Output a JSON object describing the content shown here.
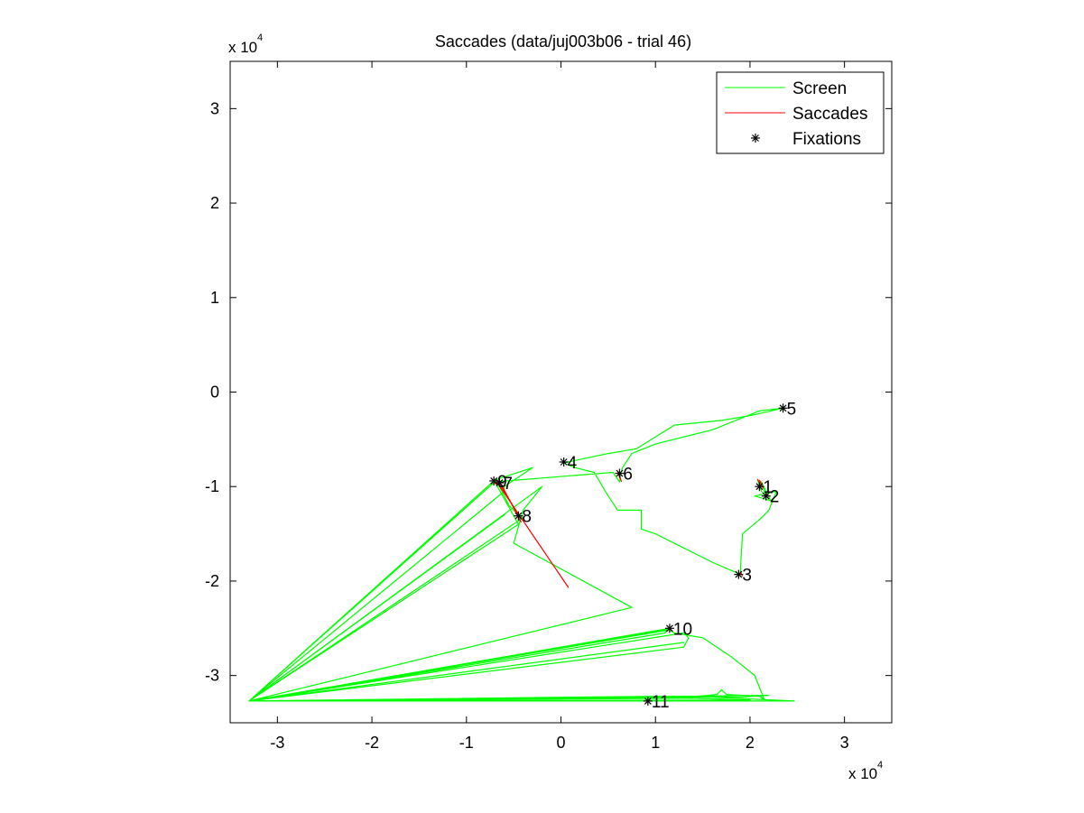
{
  "chart_data": {
    "type": "line",
    "title": "Saccades (data/juj003b06 - trial 46)",
    "x_multiplier": "x 10",
    "x_exponent": "4",
    "y_multiplier": "x 10",
    "y_exponent": "4",
    "xlim": [
      -3.5,
      3.5
    ],
    "ylim": [
      -3.5,
      3.5
    ],
    "x_ticks": [
      -3,
      -2,
      -1,
      0,
      1,
      2,
      3
    ],
    "x_tick_labels": [
      "-3",
      "-2",
      "-1",
      "0",
      "1",
      "2",
      "3"
    ],
    "y_ticks": [
      -3,
      -2,
      -1,
      0,
      1,
      2,
      3
    ],
    "y_tick_labels": [
      "-3",
      "-2",
      "-1",
      "0",
      "1",
      "2",
      "3"
    ],
    "grid": false,
    "legend_position": "top-right",
    "colors": {
      "screen": "#00ff00",
      "saccades": "#ff0000",
      "fixations": "#000000"
    },
    "series": [
      {
        "name": "Screen",
        "points": [
          [
            2.08,
            -0.93
          ],
          [
            2.12,
            -1.05
          ],
          [
            2.17,
            -1.1
          ],
          [
            2.12,
            -0.95
          ],
          [
            2.22,
            -1.15
          ],
          [
            2.05,
            -1.1
          ],
          [
            2.28,
            -1.05
          ],
          [
            2.2,
            -1.25
          ],
          [
            2.1,
            -1.35
          ],
          [
            1.92,
            -1.5
          ],
          [
            1.9,
            -1.85
          ],
          [
            1.9,
            -1.93
          ],
          [
            1.6,
            -1.8
          ],
          [
            1.3,
            -1.65
          ],
          [
            1.0,
            -1.5
          ],
          [
            0.85,
            -1.45
          ],
          [
            0.85,
            -1.25
          ],
          [
            0.6,
            -1.25
          ],
          [
            0.5,
            -1.1
          ],
          [
            0.35,
            -0.85
          ],
          [
            0.15,
            -0.8
          ],
          [
            0.03,
            -0.75
          ],
          [
            0.5,
            -0.65
          ],
          [
            0.8,
            -0.6
          ],
          [
            1.2,
            -0.35
          ],
          [
            1.7,
            -0.3
          ],
          [
            2.0,
            -0.25
          ],
          [
            2.35,
            -0.17
          ],
          [
            2.1,
            -0.2
          ],
          [
            1.6,
            -0.4
          ],
          [
            1.0,
            -0.55
          ],
          [
            0.75,
            -0.65
          ],
          [
            0.65,
            -0.8
          ],
          [
            0.63,
            -0.88
          ],
          [
            0.62,
            -0.95
          ],
          [
            0.55,
            -0.85
          ],
          [
            -0.7,
            -0.95
          ],
          [
            -0.65,
            -1.0
          ],
          [
            -0.6,
            -1.1
          ],
          [
            -0.55,
            -1.2
          ],
          [
            -0.45,
            -1.3
          ],
          [
            -0.4,
            -1.33
          ],
          [
            -3.3,
            -3.27
          ],
          [
            -0.7,
            -0.95
          ],
          [
            -0.45,
            -1.4
          ],
          [
            -3.3,
            -3.27
          ],
          [
            -0.72,
            -1.15
          ],
          [
            -3.3,
            -3.27
          ],
          [
            -0.7,
            -0.93
          ],
          [
            -0.3,
            -0.8
          ],
          [
            -0.6,
            -1.0
          ],
          [
            -0.6,
            -1.05
          ],
          [
            -3.3,
            -3.27
          ],
          [
            -0.6,
            -1.3
          ],
          [
            -3.3,
            -3.27
          ],
          [
            0.75,
            -2.28
          ],
          [
            -0.5,
            -1.6
          ],
          [
            -0.4,
            -1.25
          ],
          [
            -0.2,
            -1.0
          ],
          [
            -3.3,
            -3.27
          ],
          [
            -0.7,
            -0.95
          ],
          [
            -3.3,
            -3.27
          ],
          [
            1.15,
            -2.5
          ],
          [
            1.1,
            -2.55
          ],
          [
            -3.3,
            -3.27
          ],
          [
            1.13,
            -2.52
          ],
          [
            -3.3,
            -3.27
          ],
          [
            1.12,
            -2.52
          ],
          [
            -3.3,
            -3.27
          ],
          [
            1.3,
            -2.65
          ],
          [
            -3.3,
            -3.27
          ],
          [
            1.3,
            -2.55
          ],
          [
            1.35,
            -2.6
          ],
          [
            1.3,
            -2.7
          ],
          [
            -3.3,
            -3.27
          ],
          [
            1.13,
            -2.51
          ],
          [
            1.2,
            -2.55
          ],
          [
            1.5,
            -2.6
          ],
          [
            1.8,
            -2.8
          ],
          [
            2.05,
            -3.0
          ],
          [
            2.15,
            -3.25
          ],
          [
            2.1,
            -3.22
          ],
          [
            1.75,
            -3.2
          ],
          [
            1.7,
            -3.15
          ],
          [
            1.65,
            -3.2
          ],
          [
            1.45,
            -3.22
          ],
          [
            1.2,
            -3.22
          ],
          [
            1.0,
            -3.22
          ],
          [
            0.0,
            -3.23
          ],
          [
            -3.3,
            -3.27
          ],
          [
            0.9,
            -3.24
          ],
          [
            1.5,
            -3.22
          ],
          [
            1.9,
            -3.23
          ],
          [
            2.2,
            -3.21
          ],
          [
            -3.3,
            -3.27
          ],
          [
            1.0,
            -3.23
          ],
          [
            1.6,
            -3.23
          ],
          [
            2.47,
            -3.27
          ],
          [
            -3.3,
            -3.27
          ],
          [
            1.4,
            -3.24
          ],
          [
            2.0,
            -3.26
          ],
          [
            -3.3,
            -3.27
          ]
        ]
      },
      {
        "name": "Saccades",
        "segments": [
          [
            [
              -0.68,
              -0.95
            ],
            [
              0.08,
              -2.07
            ]
          ],
          [
            [
              -0.66,
              -0.95
            ],
            [
              -0.45,
              -1.3
            ]
          ],
          [
            [
              -0.63,
              -0.98
            ],
            [
              -0.42,
              -1.38
            ]
          ],
          [
            [
              2.08,
              -0.92
            ],
            [
              2.12,
              -1.0
            ]
          ],
          [
            [
              2.1,
              -0.93
            ],
            [
              2.14,
              -1.02
            ]
          ],
          [
            [
              2.17,
              -1.07
            ],
            [
              2.19,
              -1.1
            ]
          ],
          [
            [
              0.6,
              -0.85
            ],
            [
              0.63,
              -0.92
            ]
          ],
          [
            [
              0.62,
              -0.88
            ],
            [
              0.64,
              -0.95
            ]
          ],
          [
            [
              1.9,
              -1.9
            ],
            [
              1.92,
              -1.95
            ]
          ],
          [
            [
              2.33,
              -0.17
            ],
            [
              2.36,
              -0.19
            ]
          ],
          [
            [
              -0.72,
              -0.94
            ],
            [
              -0.68,
              -0.98
            ]
          ]
        ]
      },
      {
        "name": "Fixations",
        "points": [
          {
            "label": "1",
            "x": 2.1,
            "y": -1.0
          },
          {
            "label": "2",
            "x": 2.17,
            "y": -1.1
          },
          {
            "label": "3",
            "x": 1.88,
            "y": -1.93
          },
          {
            "label": "4",
            "x": 0.03,
            "y": -0.74
          },
          {
            "label": "5",
            "x": 2.35,
            "y": -0.17
          },
          {
            "label": "6",
            "x": 0.62,
            "y": -0.86
          },
          {
            "label": "7",
            "x": -0.65,
            "y": -0.96
          },
          {
            "label": "8",
            "x": -0.45,
            "y": -1.31
          },
          {
            "label": "9",
            "x": -0.71,
            "y": -0.94
          },
          {
            "label": "10",
            "x": 1.15,
            "y": -2.5
          },
          {
            "label": "11",
            "x": 0.92,
            "y": -3.27
          }
        ]
      }
    ]
  }
}
